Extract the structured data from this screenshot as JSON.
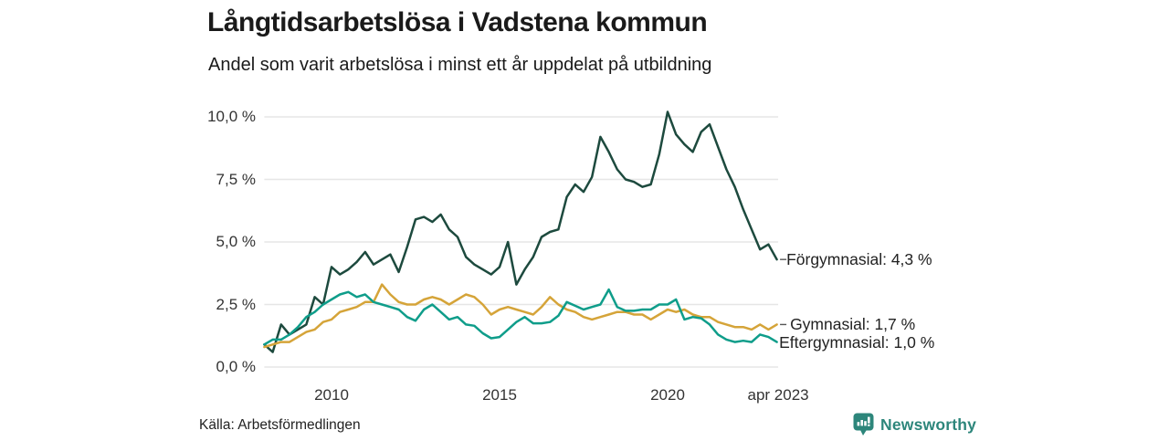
{
  "header": {
    "title": "Långtidsarbetslösa i Vadstena kommun",
    "subtitle": "Andel som varit arbetslösa i minst ett år uppdelat på utbildning"
  },
  "footer": {
    "source": "Källa: Arbetsförmedlingen",
    "brand": "Newsworthy"
  },
  "colors": {
    "grid": "#e6e6e6",
    "axis_text": "#333333",
    "label_text": "#222222",
    "brand_teal": "#2d867b"
  },
  "chart_data": {
    "type": "line",
    "title": "Långtidsarbetslösa i Vadstena kommun",
    "subtitle": "Andel som varit arbetslösa i minst ett år uppdelat på utbildning",
    "xlabel": "",
    "ylabel": "",
    "grid": "horizontal",
    "legend_position": "right-of-line-ends",
    "ylim": [
      0,
      10.5
    ],
    "xlim": [
      2008.0,
      2023.29
    ],
    "yticks": {
      "values": [
        0,
        2.5,
        5,
        7.5,
        10
      ],
      "labels": [
        "0,0 %",
        "2,5 %",
        "5,0 %",
        "7,5 %",
        "10,0 %"
      ]
    },
    "xticks": {
      "values": [
        2010,
        2015,
        2020,
        2023.29
      ],
      "labels": [
        "2010",
        "2015",
        "2020",
        "apr 2023"
      ]
    },
    "x": [
      2008.0,
      2008.25,
      2008.5,
      2008.75,
      2009.0,
      2009.25,
      2009.5,
      2009.75,
      2010.0,
      2010.25,
      2010.5,
      2010.75,
      2011.0,
      2011.25,
      2011.5,
      2011.75,
      2012.0,
      2012.25,
      2012.5,
      2012.75,
      2013.0,
      2013.25,
      2013.5,
      2013.75,
      2014.0,
      2014.25,
      2014.5,
      2014.75,
      2015.0,
      2015.25,
      2015.5,
      2015.75,
      2016.0,
      2016.25,
      2016.5,
      2016.75,
      2017.0,
      2017.25,
      2017.5,
      2017.75,
      2018.0,
      2018.25,
      2018.5,
      2018.75,
      2019.0,
      2019.25,
      2019.5,
      2019.75,
      2020.0,
      2020.25,
      2020.5,
      2020.75,
      2021.0,
      2021.25,
      2021.5,
      2021.75,
      2022.0,
      2022.25,
      2022.5,
      2022.75,
      2023.0,
      2023.25
    ],
    "series": [
      {
        "name": "Förgymnasial",
        "end_label": "Förgymnasial: 4,3 %",
        "end_value_label": "4,3 %",
        "color": "#1d4a3e",
        "label_dash": true,
        "label_dx": 9,
        "values": [
          0.9,
          0.6,
          1.7,
          1.3,
          1.5,
          1.7,
          2.8,
          2.5,
          4.0,
          3.7,
          3.9,
          4.2,
          4.6,
          4.1,
          4.3,
          4.5,
          3.8,
          4.8,
          5.9,
          6.0,
          5.8,
          6.1,
          5.5,
          5.2,
          4.4,
          4.1,
          3.9,
          3.7,
          4.0,
          5.0,
          3.3,
          3.9,
          4.4,
          5.2,
          5.4,
          5.5,
          6.8,
          7.3,
          7.0,
          7.6,
          9.2,
          8.6,
          7.9,
          7.5,
          7.4,
          7.2,
          7.3,
          8.5,
          10.2,
          9.3,
          8.9,
          8.6,
          9.4,
          9.7,
          8.8,
          7.9,
          7.2,
          6.3,
          5.5,
          4.7,
          4.9,
          4.3
        ]
      },
      {
        "name": "Gymnasial",
        "end_label": "Gymnasial: 1,7 %",
        "end_value_label": "1,7 %",
        "color": "#d5a439",
        "label_dash": true,
        "label_dx": 13,
        "values": [
          0.8,
          0.9,
          1.0,
          1.0,
          1.2,
          1.4,
          1.5,
          1.8,
          1.9,
          2.2,
          2.3,
          2.4,
          2.6,
          2.6,
          3.3,
          2.9,
          2.6,
          2.5,
          2.5,
          2.7,
          2.8,
          2.7,
          2.5,
          2.7,
          2.9,
          2.8,
          2.5,
          2.1,
          2.3,
          2.4,
          2.3,
          2.2,
          2.1,
          2.4,
          2.8,
          2.5,
          2.3,
          2.2,
          2.0,
          1.9,
          2.0,
          2.1,
          2.2,
          2.2,
          2.1,
          2.1,
          1.9,
          2.1,
          2.3,
          2.2,
          2.3,
          2.1,
          2.0,
          2.0,
          1.8,
          1.7,
          1.6,
          1.6,
          1.5,
          1.7,
          1.5,
          1.7
        ]
      },
      {
        "name": "Eftergymnasial",
        "end_label": "Eftergymnasial: 1,0 %",
        "end_value_label": "1,0 %",
        "color": "#0f9d8a",
        "label_dash": false,
        "label_dx": 1,
        "values": [
          0.9,
          1.1,
          1.1,
          1.3,
          1.6,
          2.0,
          2.2,
          2.5,
          2.7,
          2.9,
          3.0,
          2.8,
          2.9,
          2.6,
          2.5,
          2.4,
          2.3,
          2.0,
          1.85,
          2.3,
          2.5,
          2.2,
          1.9,
          2.0,
          1.7,
          1.65,
          1.35,
          1.15,
          1.2,
          1.5,
          1.8,
          2.0,
          1.75,
          1.75,
          1.8,
          2.05,
          2.6,
          2.45,
          2.3,
          2.4,
          2.5,
          3.1,
          2.4,
          2.25,
          2.25,
          2.3,
          2.3,
          2.5,
          2.5,
          2.7,
          1.9,
          2.0,
          1.95,
          1.7,
          1.3,
          1.1,
          1.0,
          1.05,
          1.0,
          1.3,
          1.2,
          1.0
        ]
      }
    ]
  }
}
